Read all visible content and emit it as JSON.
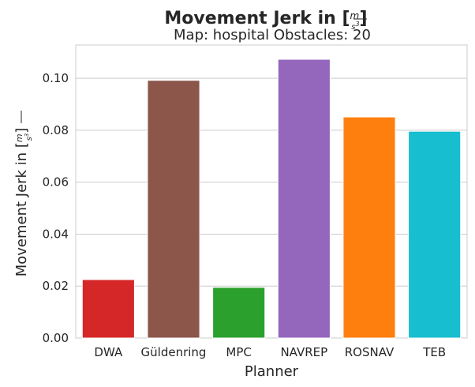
{
  "chart_data": {
    "type": "bar",
    "title": "Movement Jerk in [m/s³]",
    "title_text": "Movement Jerk in [",
    "unit_num": "m",
    "unit_den": "s",
    "unit_exp": "3",
    "bracket_close": "]",
    "subtitle": "Map: hospital Obstacles: 20",
    "xlabel": "Planner",
    "ylabel": "Movement Jerk in [m/s³]",
    "ylabel_text": "Movement Jerk in [",
    "categories": [
      "DWA",
      "Güldenring",
      "MPC",
      "NAVREP",
      "ROSNAV",
      "TEB"
    ],
    "values": [
      0.0225,
      0.0992,
      0.0195,
      0.1073,
      0.0851,
      0.0796
    ],
    "colors": [
      "#d62728",
      "#8c564b",
      "#2ca02c",
      "#9467bd",
      "#ff7f0e",
      "#17becf"
    ],
    "yticks": [
      "0.00",
      "0.02",
      "0.04",
      "0.06",
      "0.08",
      "0.10"
    ],
    "ylim": [
      0,
      0.1128
    ],
    "grid": true,
    "legend": "none"
  }
}
